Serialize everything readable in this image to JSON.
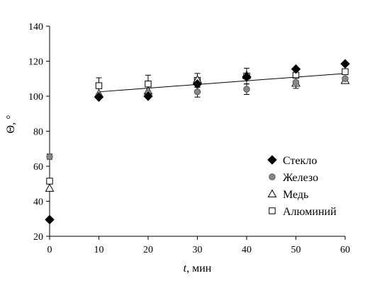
{
  "chart_data": {
    "type": "scatter",
    "xlabel_var": "t",
    "xlabel_unit": ", мин",
    "ylabel": "Θ, °",
    "xlim": [
      0,
      60
    ],
    "ylim": [
      20,
      140
    ],
    "x_ticks": [
      0,
      10,
      20,
      30,
      40,
      50,
      60
    ],
    "y_ticks": [
      20,
      40,
      60,
      80,
      100,
      120,
      140
    ],
    "grid": false,
    "legend_position": "right",
    "series": [
      {
        "name": "Стекло",
        "marker": "diamond",
        "color": "#000000",
        "points": [
          {
            "x": 0,
            "y": 29.5
          },
          {
            "x": 10,
            "y": 99.5
          },
          {
            "x": 20,
            "y": 100
          },
          {
            "x": 30,
            "y": 107
          },
          {
            "x": 40,
            "y": 111
          },
          {
            "x": 50,
            "y": 115.5
          },
          {
            "x": 60,
            "y": 118.5
          }
        ]
      },
      {
        "name": "Железо",
        "marker": "circle",
        "color": "#888888",
        "points": [
          {
            "x": 0,
            "y": 65.5,
            "err": 1.5
          },
          {
            "x": 10,
            "y": 100.5
          },
          {
            "x": 20,
            "y": 102
          },
          {
            "x": 30,
            "y": 102.5,
            "err": 3
          },
          {
            "x": 40,
            "y": 104,
            "err": 3
          },
          {
            "x": 50,
            "y": 108
          },
          {
            "x": 60,
            "y": 110
          }
        ]
      },
      {
        "name": "Медь",
        "marker": "triangle",
        "color": "#ffffff",
        "points": [
          {
            "x": 0,
            "y": 47.5
          },
          {
            "x": 10,
            "y": 101.5
          },
          {
            "x": 20,
            "y": 103
          },
          {
            "x": 30,
            "y": 109.5
          },
          {
            "x": 40,
            "y": 112
          },
          {
            "x": 50,
            "y": 107.5,
            "err": 3
          },
          {
            "x": 60,
            "y": 109
          }
        ]
      },
      {
        "name": "Алюминий",
        "marker": "square",
        "color": "#ffffff",
        "points": [
          {
            "x": 0,
            "y": 51.5
          },
          {
            "x": 10,
            "y": 106,
            "err": 4.5
          },
          {
            "x": 20,
            "y": 107,
            "err": 5
          },
          {
            "x": 30,
            "y": 109,
            "err": 4
          },
          {
            "x": 40,
            "y": 111.5,
            "err": 4.5
          },
          {
            "x": 50,
            "y": 112,
            "err": 4
          },
          {
            "x": 60,
            "y": 114
          }
        ]
      }
    ],
    "trend_line": {
      "x": [
        10,
        60
      ],
      "y": [
        102.5,
        113
      ]
    }
  }
}
